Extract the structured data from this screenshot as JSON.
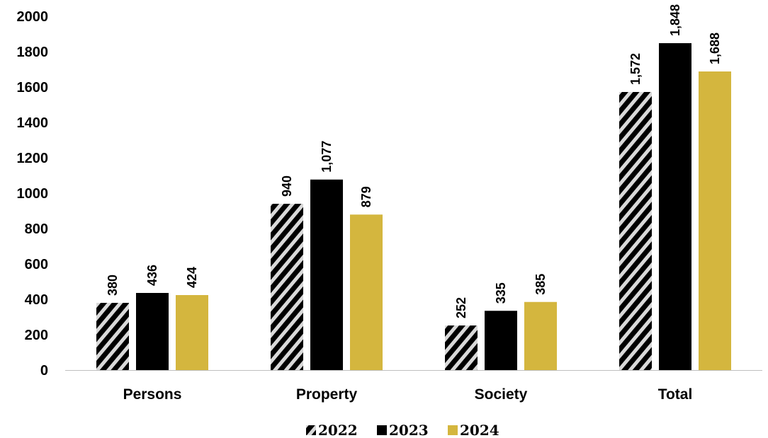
{
  "chart_data": {
    "type": "bar",
    "categories": [
      "Persons",
      "Property",
      "Society",
      "Total"
    ],
    "series": [
      {
        "name": "2022",
        "values": [
          380,
          940,
          252,
          1572
        ],
        "labels": [
          "380",
          "940",
          "252",
          "1,572"
        ],
        "style": "hatched",
        "color": "#000000"
      },
      {
        "name": "2023",
        "values": [
          436,
          1077,
          335,
          1848
        ],
        "labels": [
          "436",
          "1,077",
          "335",
          "1,848"
        ],
        "style": "solid",
        "color": "#000000"
      },
      {
        "name": "2024",
        "values": [
          424,
          879,
          385,
          1688
        ],
        "labels": [
          "424",
          "879",
          "385",
          "1,688"
        ],
        "style": "solid",
        "color": "#D4B63E"
      }
    ],
    "yticks": [
      "0",
      "200",
      "400",
      "600",
      "800",
      "1000",
      "1200",
      "1400",
      "1600",
      "1800",
      "2000"
    ],
    "ylim": [
      0,
      2000
    ],
    "title": "",
    "xlabel": "",
    "ylabel": "",
    "grid": false,
    "legend_position": "bottom"
  }
}
